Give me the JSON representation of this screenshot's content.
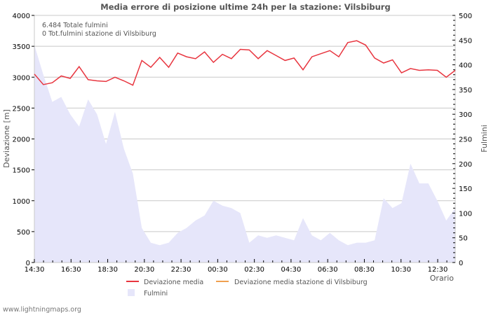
{
  "chart_data": {
    "type": "line",
    "title": "Media errore di posizione ultime 24h per la stazione: Vilsbiburg",
    "xlabel": "Orario",
    "ylabel": "Deviazione  [m]",
    "y2label": "Fulmini",
    "ylim": [
      0,
      4000
    ],
    "y2lim": [
      0,
      500
    ],
    "yticks": [
      0,
      500,
      1000,
      1500,
      2000,
      2500,
      3000,
      3500,
      4000
    ],
    "y2ticks": [
      0,
      50,
      100,
      150,
      200,
      250,
      300,
      350,
      400,
      450,
      500
    ],
    "xticks": [
      "14:30",
      "16:30",
      "18:30",
      "20:30",
      "22:30",
      "00:30",
      "02:30",
      "04:30",
      "06:30",
      "08:30",
      "10:30",
      "12:30"
    ],
    "grid": true,
    "legend_position": "bottom",
    "annotations": [
      "6.484 Totale fulmini",
      "0 Tot.fulmini stazione di Vilsbiburg"
    ],
    "x_count": 48,
    "series": [
      {
        "name": "Deviazione media",
        "type": "line",
        "axis": "left",
        "color": "#e8353f",
        "values": [
          3050,
          2880,
          2910,
          3020,
          2980,
          3170,
          2960,
          2940,
          2930,
          3000,
          2940,
          2870,
          3270,
          3160,
          3320,
          3160,
          3390,
          3330,
          3300,
          3410,
          3240,
          3370,
          3300,
          3450,
          3440,
          3300,
          3430,
          3350,
          3270,
          3310,
          3120,
          3330,
          3380,
          3430,
          3330,
          3560,
          3590,
          3520,
          3310,
          3230,
          3280,
          3070,
          3140,
          3110,
          3120,
          3110,
          3000,
          3110
        ]
      },
      {
        "name": "Deviazione media stazione di Vilsbiburg",
        "type": "line",
        "axis": "left",
        "color": "#f0a050",
        "values": []
      },
      {
        "name": "Fulmini",
        "type": "area",
        "axis": "right",
        "color": "#e6e6fa",
        "values": [
          440,
          380,
          325,
          335,
          300,
          275,
          330,
          300,
          240,
          305,
          230,
          180,
          70,
          40,
          35,
          40,
          60,
          70,
          85,
          95,
          125,
          115,
          110,
          100,
          40,
          55,
          50,
          55,
          50,
          45,
          90,
          55,
          45,
          60,
          45,
          35,
          40,
          40,
          45,
          130,
          110,
          120,
          200,
          160,
          160,
          125,
          85,
          110
        ]
      }
    ]
  },
  "footer": "www.lightningmaps.org"
}
